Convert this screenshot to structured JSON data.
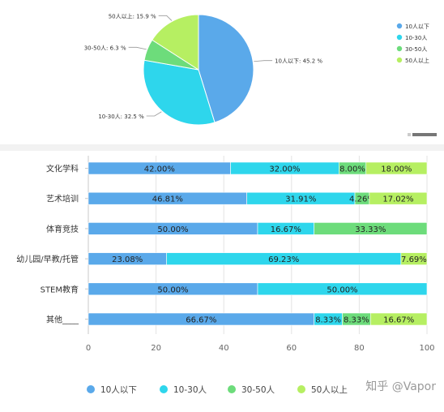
{
  "chart_data": [
    {
      "type": "pie",
      "title": "",
      "slices": [
        {
          "name": "10人以下",
          "value": 45.2,
          "label": "10人以下: 45.2 %",
          "color": "#5aa9ea"
        },
        {
          "name": "10-30人",
          "value": 32.5,
          "label": "10-30人: 32.5 %",
          "color": "#2ed6ec"
        },
        {
          "name": "30-50人",
          "value": 6.3,
          "label": "30-50人: 6.3 %",
          "color": "#6ddc7b"
        },
        {
          "name": "50人以上",
          "value": 15.9,
          "label": "50人以上: 15.9 %",
          "color": "#b6ef62"
        }
      ],
      "legend": [
        "10人以下",
        "10-30人",
        "30-50人",
        "50人以上"
      ],
      "legend_position": "right"
    },
    {
      "type": "bar",
      "orientation": "horizontal",
      "stacked": true,
      "categories": [
        "文化学科",
        "艺术培训",
        "体育竞技",
        "幼儿园/早教/托管",
        "STEM教育",
        "其他____"
      ],
      "series": [
        {
          "name": "10人以下",
          "color": "#5aa9ea",
          "values": [
            42.0,
            46.81,
            50.0,
            23.08,
            50.0,
            66.67
          ],
          "labels": [
            "42.00%",
            "46.81%",
            "50.00%",
            "23.08%",
            "50.00%",
            "66.67%"
          ]
        },
        {
          "name": "10-30人",
          "color": "#2ed6ec",
          "values": [
            32.0,
            31.91,
            16.67,
            69.23,
            50.0,
            8.33
          ],
          "labels": [
            "32.00%",
            "31.91%",
            "16.67%",
            "69.23%",
            "50.00%",
            "8.33%"
          ]
        },
        {
          "name": "30-50人",
          "color": "#6ddc7b",
          "values": [
            8.0,
            4.26,
            33.33,
            0,
            0,
            8.33
          ],
          "labels": [
            "8.00%",
            "4.26%",
            "33.33%",
            "",
            "",
            "8.33%"
          ]
        },
        {
          "name": "50人以上",
          "color": "#b6ef62",
          "values": [
            18.0,
            17.02,
            0,
            7.69,
            0,
            16.67
          ],
          "labels": [
            "18.00%",
            "17.02%",
            "",
            "7.69%",
            "",
            "16.67%"
          ]
        }
      ],
      "xlim": [
        0,
        100
      ],
      "xticks": [
        "0",
        "20",
        "40",
        "60",
        "80",
        "100"
      ],
      "legend_position": "bottom"
    }
  ],
  "watermark": "知乎 @Vapor"
}
